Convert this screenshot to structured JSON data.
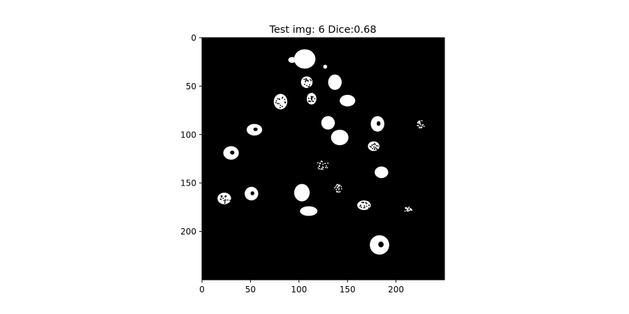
{
  "chart_data": {
    "type": "image",
    "title": "Test img: 6 Dice:0.68",
    "image_size": [
      250,
      250
    ],
    "xlim": [
      0,
      250
    ],
    "ylim": [
      250,
      0
    ],
    "x_ticks": [
      0,
      50,
      100,
      150,
      200
    ],
    "y_ticks": [
      0,
      50,
      100,
      150,
      200
    ],
    "x_tick_labels": [
      "0",
      "50",
      "100",
      "150",
      "200"
    ],
    "y_tick_labels": [
      "0",
      "50",
      "100",
      "150",
      "200"
    ],
    "colormap": "gray",
    "background_color": "#000000",
    "foreground_color": "#ffffff",
    "blobs": [
      {
        "cx": 106,
        "cy": 22,
        "rx": 11,
        "ry": 10,
        "texture": "solid"
      },
      {
        "cx": 93,
        "cy": 23,
        "rx": 4,
        "ry": 3,
        "texture": "solid"
      },
      {
        "cx": 127,
        "cy": 30,
        "rx": 2,
        "ry": 2,
        "texture": "solid"
      },
      {
        "cx": 108,
        "cy": 46,
        "rx": 6,
        "ry": 6,
        "texture": "speckled"
      },
      {
        "cx": 137,
        "cy": 46,
        "rx": 7,
        "ry": 8,
        "texture": "solid"
      },
      {
        "cx": 113,
        "cy": 63,
        "rx": 5,
        "ry": 6,
        "texture": "speckled"
      },
      {
        "cx": 81,
        "cy": 66,
        "rx": 7,
        "ry": 8,
        "texture": "speckled"
      },
      {
        "cx": 150,
        "cy": 65,
        "rx": 8,
        "ry": 6,
        "texture": "solid"
      },
      {
        "cx": 130,
        "cy": 88,
        "rx": 7,
        "ry": 7,
        "texture": "solid"
      },
      {
        "cx": 181,
        "cy": 89,
        "rx": 7,
        "ry": 8,
        "texture": "hole"
      },
      {
        "cx": 225,
        "cy": 89,
        "rx": 4,
        "ry": 4,
        "texture": "sparse"
      },
      {
        "cx": 54,
        "cy": 95,
        "rx": 8,
        "ry": 6,
        "texture": "hole"
      },
      {
        "cx": 142,
        "cy": 103,
        "rx": 9,
        "ry": 8,
        "texture": "solid"
      },
      {
        "cx": 177,
        "cy": 112,
        "rx": 6,
        "ry": 5,
        "texture": "speckled"
      },
      {
        "cx": 30,
        "cy": 119,
        "rx": 8,
        "ry": 7,
        "texture": "hole"
      },
      {
        "cx": 124,
        "cy": 131,
        "rx": 6,
        "ry": 5,
        "texture": "sparse"
      },
      {
        "cx": 185,
        "cy": 139,
        "rx": 7,
        "ry": 6,
        "texture": "solid"
      },
      {
        "cx": 140,
        "cy": 155,
        "rx": 4,
        "ry": 4,
        "texture": "sparse"
      },
      {
        "cx": 103,
        "cy": 160,
        "rx": 8,
        "ry": 9,
        "texture": "solid"
      },
      {
        "cx": 51,
        "cy": 161,
        "rx": 7,
        "ry": 7,
        "texture": "hole"
      },
      {
        "cx": 23,
        "cy": 166,
        "rx": 7,
        "ry": 6,
        "texture": "speckled"
      },
      {
        "cx": 167,
        "cy": 173,
        "rx": 7,
        "ry": 5,
        "texture": "speckled"
      },
      {
        "cx": 212,
        "cy": 177,
        "rx": 4,
        "ry": 3,
        "texture": "sparse"
      },
      {
        "cx": 110,
        "cy": 179,
        "rx": 9,
        "ry": 5,
        "texture": "solid"
      },
      {
        "cx": 183,
        "cy": 214,
        "rx": 10,
        "ry": 10,
        "texture": "hole"
      }
    ]
  }
}
